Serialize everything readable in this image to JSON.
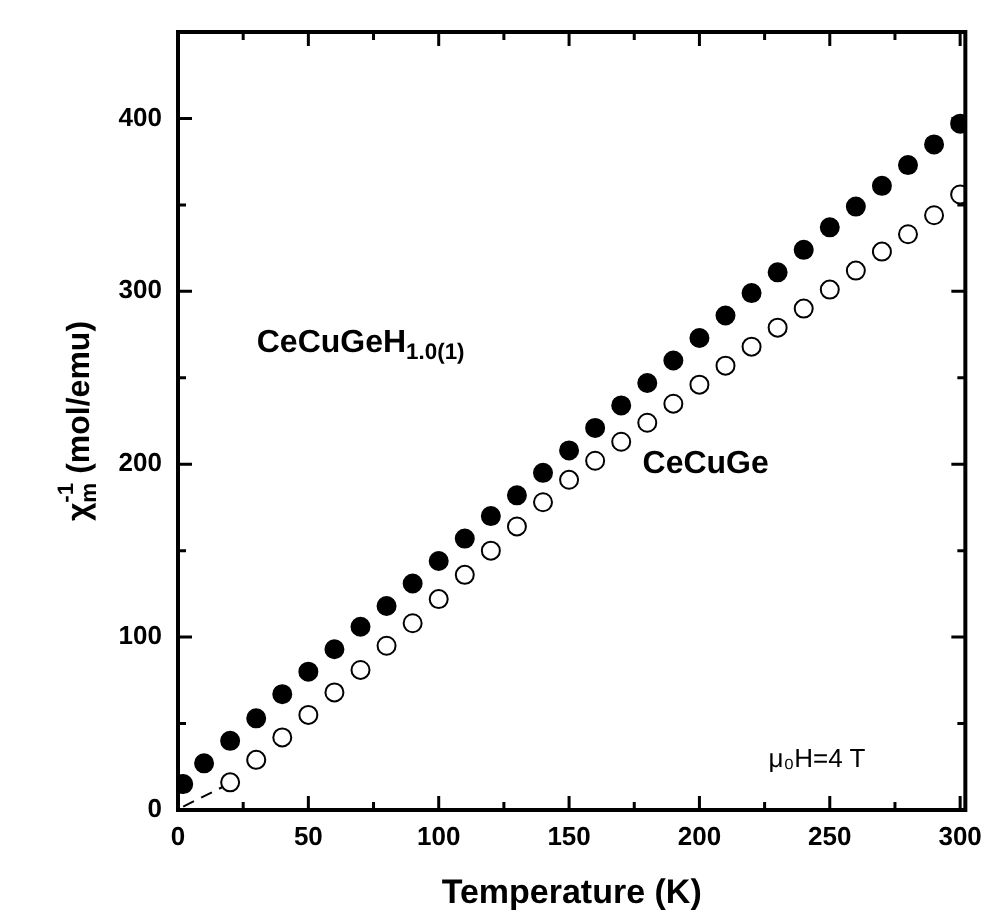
{
  "chart_data": {
    "type": "scatter",
    "xlabel": "Temperature (K)",
    "ylabel": "χ$_{m}$$^{-1}$ (mol/emu)",
    "xlim": [
      0,
      302
    ],
    "ylim": [
      0,
      450
    ],
    "xticks": [
      0,
      {
        "value": 25,
        "label": null
      },
      50,
      {
        "value": 75,
        "label": null
      },
      100,
      {
        "value": 125,
        "label": null
      },
      150,
      {
        "value": 175,
        "label": null
      },
      200,
      {
        "value": 225,
        "label": null
      },
      250,
      {
        "value": 275,
        "label": null
      },
      300
    ],
    "yticks": [
      0,
      {
        "value": 50,
        "label": null
      },
      100,
      {
        "value": 150,
        "label": null
      },
      200,
      {
        "value": 250,
        "label": null
      },
      300,
      {
        "value": 350,
        "label": null
      },
      400
    ],
    "grid": false,
    "legend": false,
    "marker": "circle",
    "annotations": [
      "CeCuGeH$_{1.0(1)}$",
      "CeCuGe",
      "μ₀H=4 T"
    ],
    "series": [
      {
        "color": "#000000",
        "x": [
          2,
          10,
          20,
          30,
          40,
          50,
          60,
          70,
          80,
          90,
          100,
          110,
          120,
          130,
          140,
          150,
          160,
          170,
          180,
          190,
          200,
          210,
          220,
          230,
          240,
          250,
          260,
          270,
          280,
          290,
          300
        ],
        "values": [
          15,
          27,
          40,
          53,
          67,
          80,
          93,
          106,
          118,
          131,
          144,
          157,
          170,
          182,
          195,
          208,
          221,
          234,
          247,
          260,
          273,
          286,
          299,
          311,
          324,
          337,
          349,
          361,
          373,
          385,
          397
        ]
      },
      {
        "color": "#000000",
        "x": [
          20,
          30,
          40,
          50,
          60,
          70,
          80,
          90,
          100,
          110,
          120,
          130,
          140,
          150,
          160,
          170,
          180,
          190,
          200,
          210,
          220,
          230,
          240,
          250,
          260,
          270,
          280,
          290,
          300
        ],
        "values": [
          16,
          29,
          42,
          55,
          68,
          81,
          95,
          108,
          122,
          136,
          150,
          164,
          178,
          191,
          202,
          213,
          224,
          235,
          246,
          257,
          268,
          279,
          290,
          301,
          312,
          323,
          333,
          344,
          356
        ]
      },
      {
        "type": "line",
        "color": "#000000",
        "line_style": "dashed",
        "marker": "none",
        "x": [
          2,
          18
        ],
        "values": [
          2,
          14
        ]
      }
    ]
  }
}
